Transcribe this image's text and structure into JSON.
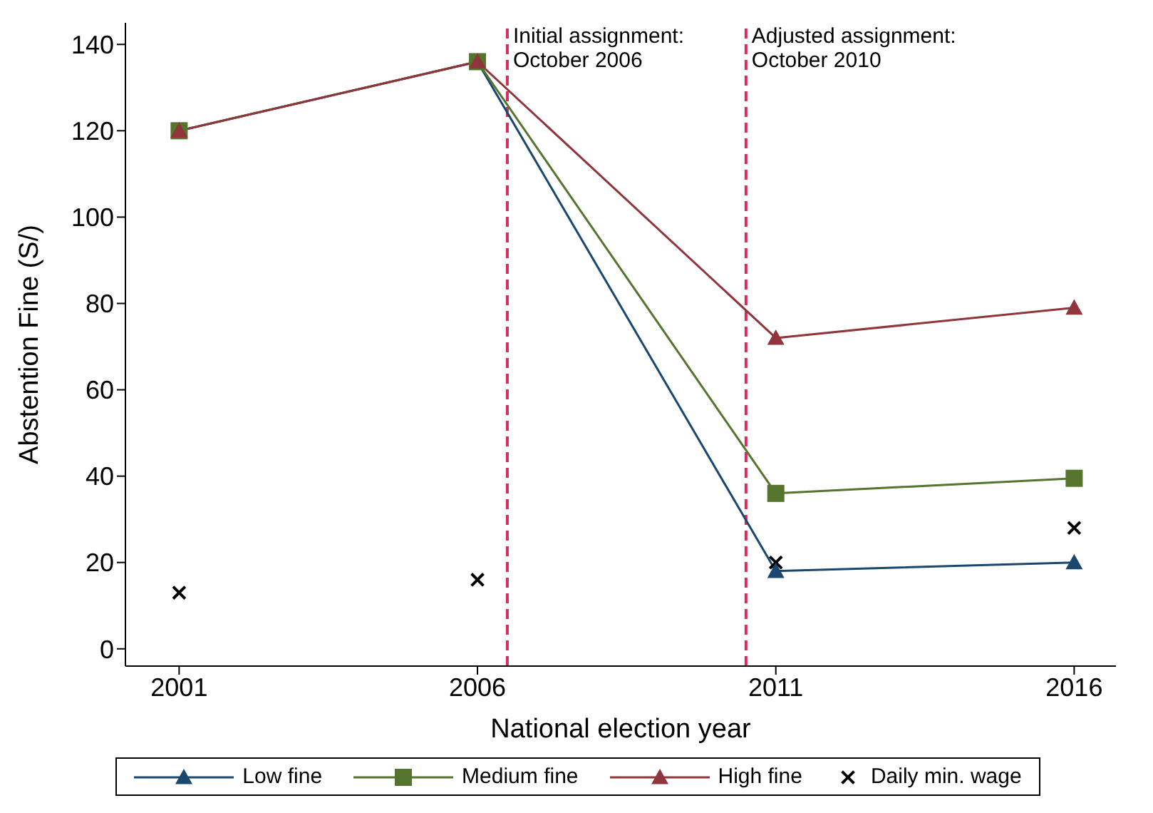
{
  "chart_data": {
    "type": "line",
    "xlabel": "National election year",
    "ylabel": "Abstention Fine (S/)",
    "x": [
      2001,
      2006,
      2011,
      2016
    ],
    "xlim": [
      2000.1,
      2016.7
    ],
    "xticks": [
      2001,
      2006,
      2011,
      2016
    ],
    "ylim": [
      -4,
      145
    ],
    "yticks": [
      0,
      20,
      40,
      60,
      80,
      100,
      120,
      140
    ],
    "series": [
      {
        "name": "Low fine",
        "color": "#1a476f",
        "values": [
          120,
          136,
          18,
          20
        ],
        "marker": "triangle"
      },
      {
        "name": "Medium fine",
        "color": "#55752f",
        "values": [
          120,
          136,
          36,
          39.5
        ],
        "marker": "square"
      },
      {
        "name": "High fine",
        "color": "#90353b",
        "values": [
          120,
          136,
          72,
          79
        ],
        "marker": "triangle"
      },
      {
        "name": "Daily min. wage",
        "type": "scatter",
        "color": "#000000",
        "values": [
          13,
          16,
          20,
          28
        ],
        "marker": "cross"
      }
    ],
    "ref_lines": [
      {
        "axis": "x",
        "value": 2006.5,
        "label": "Initial assignment:\nOctober 2006",
        "color": "#d62d5a",
        "line_style": "dashed"
      },
      {
        "axis": "x",
        "value": 2010.5,
        "label": "Adjusted assignment:\nOctober 2010",
        "color": "#d62d5a",
        "line_style": "dashed"
      }
    ],
    "legend": "bottom"
  }
}
